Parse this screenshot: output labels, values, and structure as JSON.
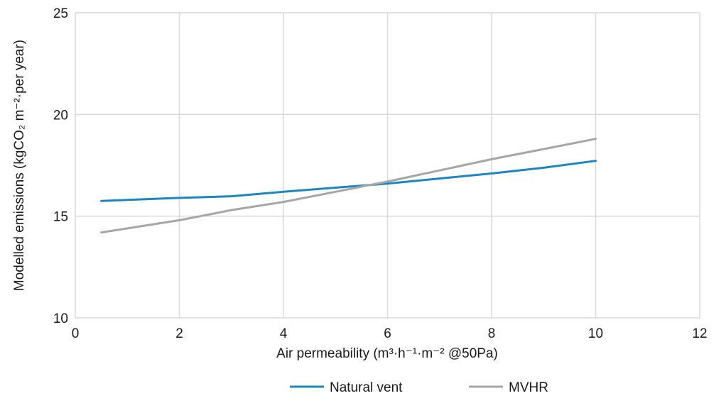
{
  "chart_data": {
    "type": "line",
    "xlabel": "Air permeability (m³·h⁻¹·m⁻² @50Pa)",
    "ylabel": "Modelled emissions (kgCO₂ m⁻²·per year)",
    "xlim": [
      0,
      12
    ],
    "ylim": [
      10,
      25
    ],
    "x_ticks": [
      0,
      2,
      4,
      6,
      8,
      10,
      12
    ],
    "y_ticks": [
      10,
      15,
      20,
      25
    ],
    "grid": true,
    "legend_position": "bottom",
    "series": [
      {
        "name": "Natural vent",
        "color": "#1a86c2",
        "x": [
          0.5,
          1,
          2,
          3,
          4,
          5,
          6,
          7,
          8,
          9,
          10
        ],
        "y": [
          15.75,
          15.8,
          15.9,
          15.98,
          16.2,
          16.4,
          16.6,
          16.85,
          17.1,
          17.38,
          17.72
        ]
      },
      {
        "name": "MVHR",
        "color": "#a6a6a6",
        "x": [
          0.5,
          1,
          2,
          3,
          4,
          5,
          6,
          7,
          8,
          9,
          10
        ],
        "y": [
          14.2,
          14.4,
          14.8,
          15.3,
          15.7,
          16.2,
          16.7,
          17.25,
          17.8,
          18.3,
          18.8
        ]
      }
    ]
  }
}
